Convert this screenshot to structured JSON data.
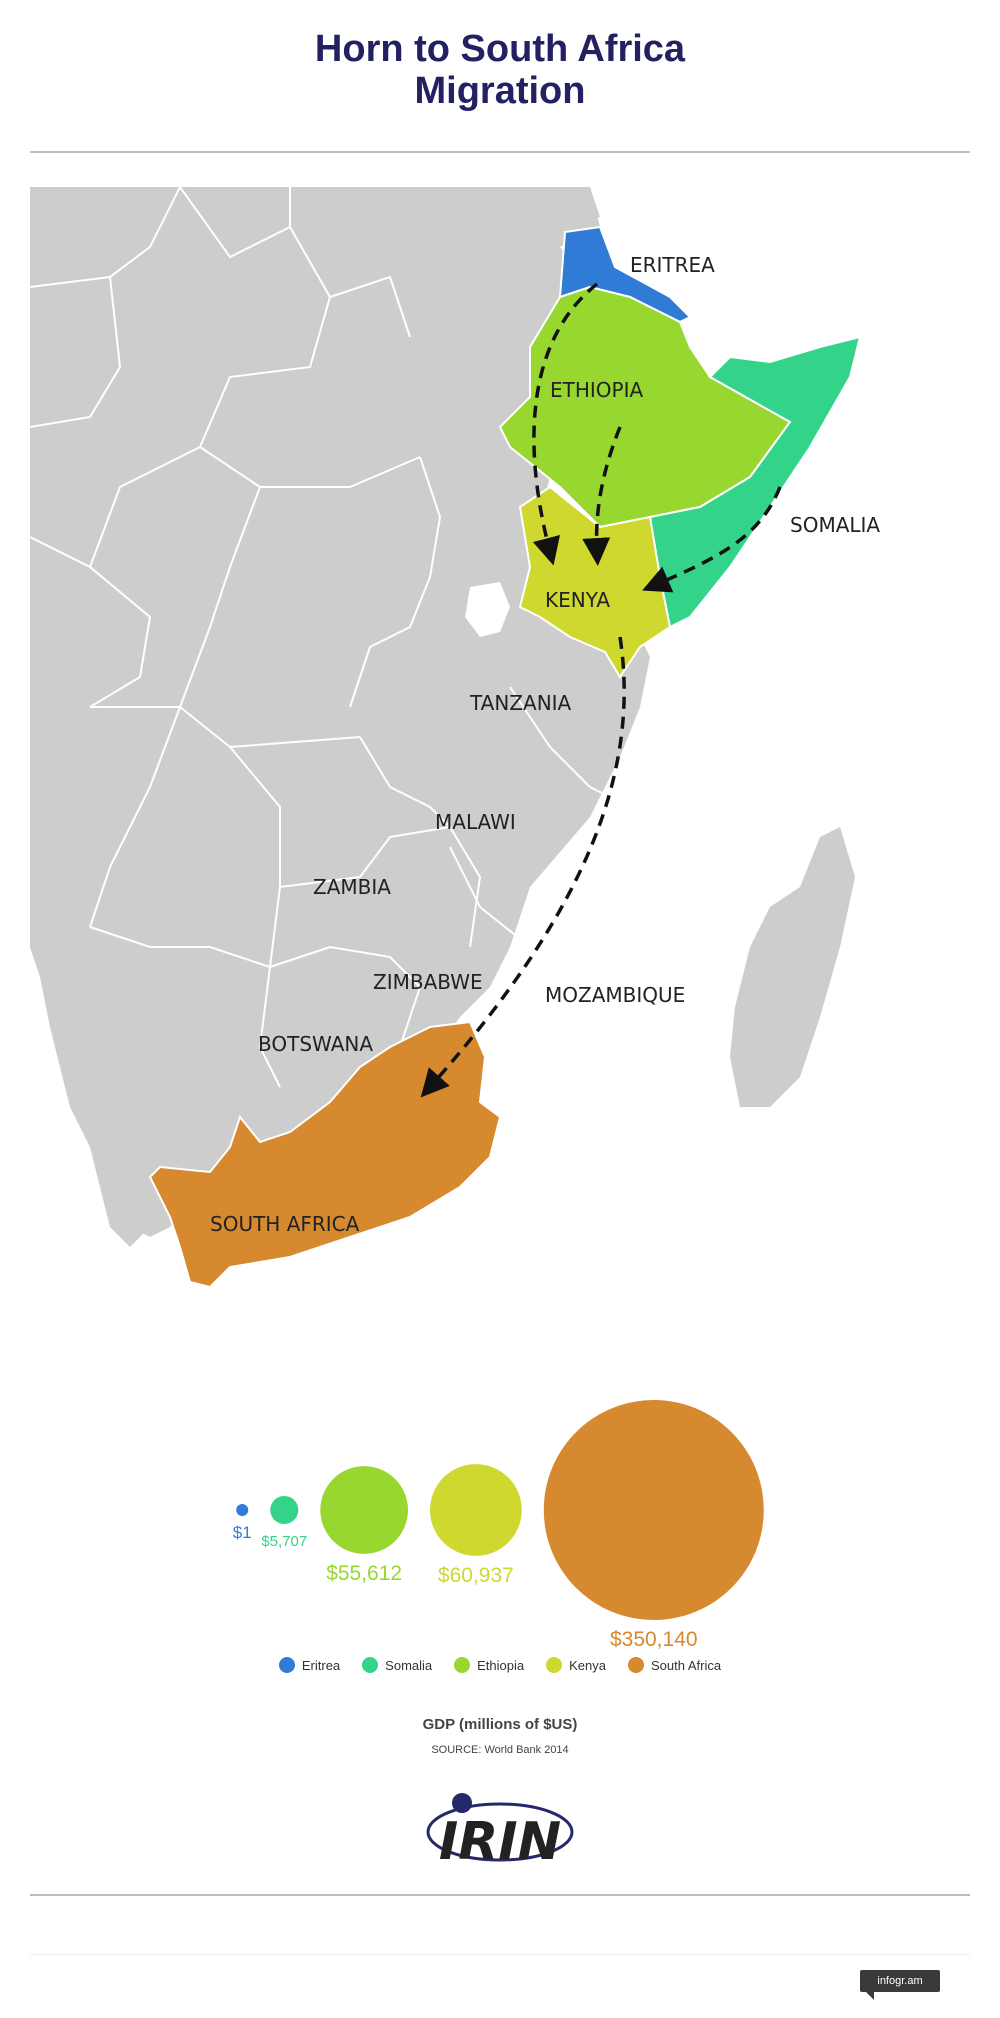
{
  "header": {
    "title_line1": "Horn to South Africa",
    "title_line2": "Migration"
  },
  "map": {
    "labels": {
      "eritrea": "ERITREA",
      "ethiopia": "ETHIOPIA",
      "somalia": "SOMALIA",
      "kenya": "KENYA",
      "tanzania": "TANZANIA",
      "malawi": "MALAWI",
      "zambia": "ZAMBIA",
      "zimbabwe": "ZIMBABWE",
      "mozambique": "MOZAMBIQUE",
      "botswana": "BOTSWANA",
      "south_africa": "SOUTH AFRICA"
    },
    "colors": {
      "eritrea": "#2f7bd6",
      "somalia": "#33d48a",
      "ethiopia": "#97d72f",
      "kenya": "#cfd82f",
      "south_africa": "#d6892e",
      "land": "#cdcdcd",
      "border": "#ffffff"
    }
  },
  "chart_data": {
    "type": "bubble",
    "categories": [
      "Eritrea",
      "Somalia",
      "Ethiopia",
      "Kenya",
      "South Africa"
    ],
    "values": [
      1,
      5707,
      55612,
      60937,
      350140
    ],
    "value_labels": [
      "$1",
      "$5,707",
      "$55,612",
      "$60,937",
      "$350,140"
    ],
    "colors": [
      "#2f7bd6",
      "#33d48a",
      "#97d72f",
      "#cfd82f",
      "#d6892e"
    ],
    "title": "GDP (millions of $US)",
    "source": "SOURCE: World Bank 2014",
    "legend_position": "bottom"
  },
  "footer": {
    "logo_text": "IRIN",
    "credit": "infogr.am",
    "logo_color": "#25286b"
  }
}
